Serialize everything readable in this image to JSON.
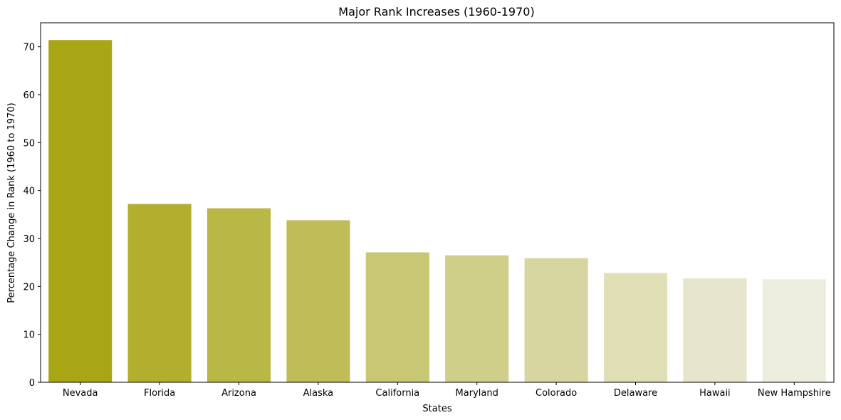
{
  "chart_data": {
    "type": "bar",
    "title": "Major Rank Increases (1960-1970)",
    "xlabel": "States",
    "ylabel": "Percentage Change in Rank (1960 to 1970)",
    "categories": [
      "Nevada",
      "Florida",
      "Arizona",
      "Alaska",
      "California",
      "Maryland",
      "Colorado",
      "Delaware",
      "Hawaii",
      "New Hampshire"
    ],
    "values": [
      71.4,
      37.2,
      36.3,
      33.8,
      27.1,
      26.5,
      25.9,
      22.8,
      21.7,
      21.5
    ],
    "colors": [
      "#a9a615",
      "#b2af2e",
      "#b9b746",
      "#c0bd59",
      "#c8c774",
      "#d0cf89",
      "#d8d6a0",
      "#e0dfb6",
      "#e7e6cc",
      "#eeeedf"
    ],
    "yticks": [
      0,
      10,
      20,
      30,
      40,
      50,
      60,
      70
    ],
    "ylim": [
      0,
      75
    ],
    "grid": false,
    "legend": false
  }
}
